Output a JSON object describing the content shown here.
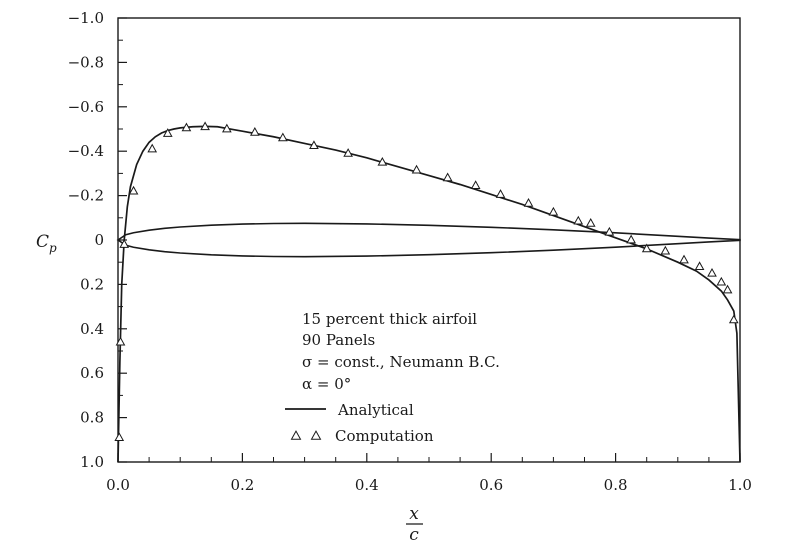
{
  "chart_data": {
    "type": "line",
    "title": "",
    "xlabel": "x/c",
    "xlabel_num": "x",
    "xlabel_den": "c",
    "ylabel": "C_p",
    "ylabel_main": "C",
    "ylabel_sub": "p",
    "xlim": [
      0,
      1
    ],
    "ylim": [
      1.0,
      -1.0
    ],
    "y_inverted": true,
    "grid": false,
    "x_ticks": [
      0.0,
      0.2,
      0.4,
      0.6,
      0.8,
      1.0
    ],
    "x_tick_labels": [
      "0.0",
      "0.2",
      "0.4",
      "0.6",
      "0.8",
      "1.0"
    ],
    "y_ticks": [
      -1.0,
      -0.8,
      -0.6,
      -0.4,
      -0.2,
      0,
      0.2,
      0.4,
      0.6,
      0.8,
      1.0
    ],
    "y_tick_labels": [
      "−1.0",
      "−0.8",
      "−0.6",
      "−0.4",
      "−0.2",
      "0",
      "0.2",
      "0.4",
      "0.6",
      "0.8",
      "1.0"
    ],
    "annotations": [
      "15 percent thick airfoil",
      "90 Panels",
      "σ = const., Neumann B.C.",
      "α = 0°"
    ],
    "legend_position": "bottom-center",
    "series": [
      {
        "name": "Analytical",
        "style": "solid",
        "x": [
          0.0,
          0.003,
          0.006,
          0.01,
          0.015,
          0.02,
          0.03,
          0.04,
          0.05,
          0.06,
          0.07,
          0.08,
          0.09,
          0.1,
          0.12,
          0.14,
          0.16,
          0.2,
          0.25,
          0.3,
          0.35,
          0.4,
          0.45,
          0.5,
          0.55,
          0.6,
          0.65,
          0.7,
          0.75,
          0.8,
          0.85,
          0.9,
          0.93,
          0.95,
          0.97,
          0.98,
          0.99,
          0.995,
          1.0
        ],
        "y": [
          1.0,
          0.55,
          0.2,
          0.0,
          -0.15,
          -0.24,
          -0.34,
          -0.4,
          -0.44,
          -0.465,
          -0.482,
          -0.493,
          -0.5,
          -0.505,
          -0.51,
          -0.512,
          -0.51,
          -0.49,
          -0.465,
          -0.435,
          -0.405,
          -0.37,
          -0.33,
          -0.29,
          -0.25,
          -0.205,
          -0.16,
          -0.11,
          -0.06,
          -0.01,
          0.04,
          0.1,
          0.14,
          0.18,
          0.23,
          0.27,
          0.32,
          0.42,
          1.0
        ]
      },
      {
        "name": "Computation",
        "style": "triangle",
        "x": [
          0.002,
          0.004,
          0.01,
          0.025,
          0.055,
          0.08,
          0.11,
          0.14,
          0.175,
          0.22,
          0.265,
          0.315,
          0.37,
          0.425,
          0.48,
          0.53,
          0.575,
          0.615,
          0.66,
          0.7,
          0.74,
          0.76,
          0.79,
          0.825,
          0.85,
          0.88,
          0.91,
          0.935,
          0.955,
          0.97,
          0.98,
          0.99
        ],
        "y": [
          0.89,
          0.46,
          0.02,
          -0.22,
          -0.41,
          -0.48,
          -0.505,
          -0.51,
          -0.5,
          -0.485,
          -0.46,
          -0.425,
          -0.39,
          -0.35,
          -0.315,
          -0.28,
          -0.245,
          -0.205,
          -0.165,
          -0.125,
          -0.085,
          -0.075,
          -0.035,
          0.0,
          0.04,
          0.05,
          0.09,
          0.12,
          0.15,
          0.19,
          0.225,
          0.36
        ]
      }
    ],
    "airfoil_outline": {
      "x": [
        0.0,
        0.0125,
        0.025,
        0.05,
        0.075,
        0.1,
        0.15,
        0.2,
        0.25,
        0.3,
        0.4,
        0.5,
        0.6,
        0.7,
        0.8,
        0.9,
        0.95,
        1.0
      ],
      "half_thickness": [
        0.0,
        0.0237,
        0.0327,
        0.0443,
        0.0525,
        0.0585,
        0.0668,
        0.0717,
        0.0743,
        0.075,
        0.0725,
        0.0662,
        0.0573,
        0.0458,
        0.0322,
        0.0168,
        0.0086,
        0.0016
      ]
    }
  }
}
